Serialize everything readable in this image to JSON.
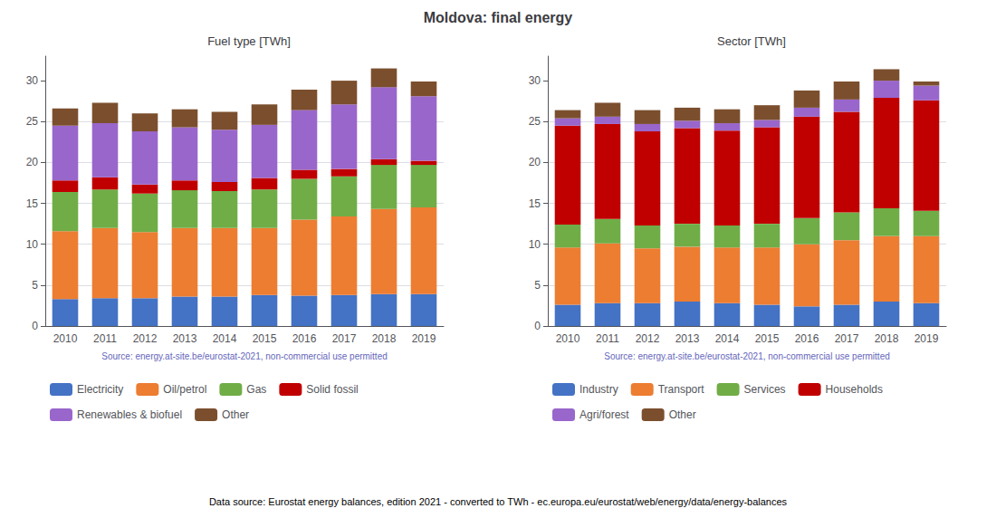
{
  "title": "Moldova: final energy",
  "annotations": [
    "Data source: Eurostat energy balances, edition 2021 - converted to TWh - ec.europa.eu/eurostat/web/energy/data/energy-balances"
  ],
  "chart_data": [
    {
      "type": "bar",
      "title": "Fuel type [TWh]",
      "categories": [
        "2010",
        "2011",
        "2012",
        "2013",
        "2014",
        "2015",
        "2016",
        "2017",
        "2018",
        "2019"
      ],
      "series": [
        {
          "name": "Electricity",
          "color": "#4472c4",
          "values": [
            3.3,
            3.4,
            3.4,
            3.6,
            3.6,
            3.8,
            3.7,
            3.8,
            3.9,
            3.9
          ]
        },
        {
          "name": "Oil/petrol",
          "color": "#ed7d31",
          "values": [
            8.3,
            8.6,
            8.1,
            8.4,
            8.4,
            8.2,
            9.3,
            9.6,
            10.4,
            10.6
          ]
        },
        {
          "name": "Gas",
          "color": "#70ad47",
          "values": [
            4.8,
            4.7,
            4.7,
            4.6,
            4.5,
            4.7,
            5.0,
            4.9,
            5.4,
            5.2
          ]
        },
        {
          "name": "Solid fossil",
          "color": "#c00000",
          "values": [
            1.4,
            1.5,
            1.1,
            1.2,
            1.1,
            1.4,
            1.1,
            0.9,
            0.7,
            0.5
          ]
        },
        {
          "name": "Renewables & biofuel",
          "color": "#9966cc",
          "values": [
            6.7,
            6.6,
            6.5,
            6.5,
            6.4,
            6.5,
            7.3,
            7.9,
            8.8,
            7.9
          ]
        },
        {
          "name": "Other",
          "color": "#7b4f2e",
          "values": [
            2.1,
            2.5,
            2.2,
            2.2,
            2.2,
            2.5,
            2.5,
            2.9,
            2.3,
            1.8
          ]
        }
      ],
      "stacked": true,
      "ylim": [
        0,
        33
      ],
      "yticks": [
        0,
        5,
        10,
        15,
        20,
        25,
        30
      ],
      "grid": true,
      "legend": "bottom",
      "annotations": [
        "Source: energy.at-site.be/eurostat-2021, non-commercial use permitted"
      ]
    },
    {
      "type": "bar",
      "title": "Sector [TWh]",
      "categories": [
        "2010",
        "2011",
        "2012",
        "2013",
        "2014",
        "2015",
        "2016",
        "2017",
        "2018",
        "2019"
      ],
      "series": [
        {
          "name": "Industry",
          "color": "#4472c4",
          "values": [
            2.6,
            2.8,
            2.8,
            3.0,
            2.8,
            2.6,
            2.4,
            2.6,
            3.0,
            2.8
          ]
        },
        {
          "name": "Transport",
          "color": "#ed7d31",
          "values": [
            7.0,
            7.3,
            6.7,
            6.7,
            6.8,
            7.0,
            7.6,
            7.9,
            8.0,
            8.2
          ]
        },
        {
          "name": "Services",
          "color": "#70ad47",
          "values": [
            2.8,
            3.0,
            2.8,
            2.8,
            2.7,
            2.9,
            3.2,
            3.4,
            3.4,
            3.1
          ]
        },
        {
          "name": "Households",
          "color": "#c00000",
          "values": [
            12.1,
            11.6,
            11.5,
            11.7,
            11.6,
            11.8,
            12.4,
            12.3,
            13.5,
            13.5
          ]
        },
        {
          "name": "Agri/forest",
          "color": "#9966cc",
          "values": [
            0.9,
            0.9,
            0.9,
            0.9,
            0.9,
            0.9,
            1.1,
            1.5,
            2.1,
            1.8
          ]
        },
        {
          "name": "Other",
          "color": "#7b4f2e",
          "values": [
            1.0,
            1.7,
            1.7,
            1.6,
            1.7,
            1.8,
            2.1,
            2.2,
            1.4,
            0.5
          ]
        }
      ],
      "stacked": true,
      "ylim": [
        0,
        33
      ],
      "yticks": [
        0,
        5,
        10,
        15,
        20,
        25,
        30
      ],
      "grid": true,
      "legend": "bottom",
      "annotations": [
        "Source: energy.at-site.be/eurostat-2021, non-commercial use permitted"
      ]
    }
  ]
}
